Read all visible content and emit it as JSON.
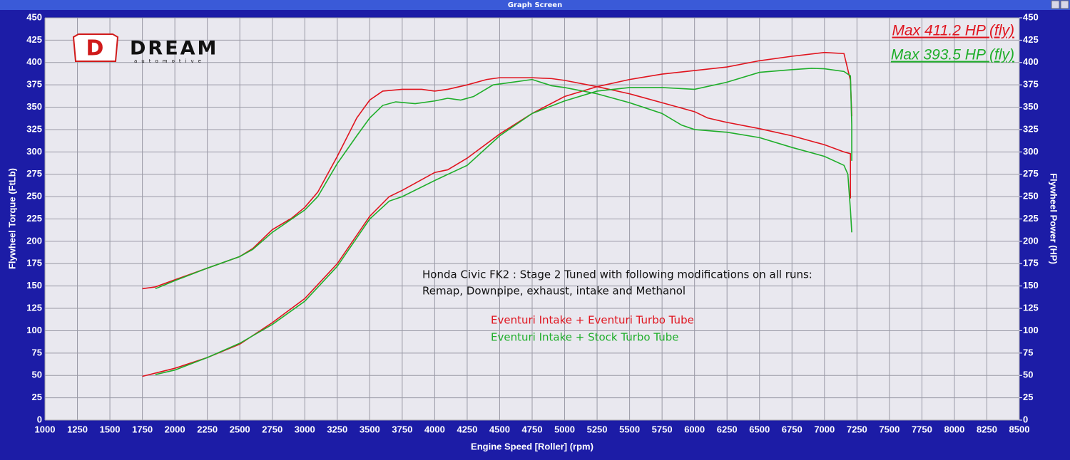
{
  "window_title": "Graph Screen",
  "logo": {
    "name": "DREAM",
    "tagline": "automotive"
  },
  "chart_data": {
    "type": "line",
    "xlabel": "Engine Speed [Roller] (rpm)",
    "ylabel": "Flywheel Torque (FtLb)",
    "y2label": "Flywheel Power (HP)",
    "xlim": [
      1000,
      8500
    ],
    "ylim": [
      0,
      450
    ],
    "y2lim": [
      0,
      450
    ],
    "xticks": [
      1000,
      1250,
      1500,
      1750,
      2000,
      2250,
      2500,
      2750,
      3000,
      3250,
      3500,
      3750,
      4000,
      4250,
      4500,
      4750,
      5000,
      5250,
      5500,
      5750,
      6000,
      6250,
      6500,
      6750,
      7000,
      7250,
      7500,
      7750,
      8000,
      8250,
      8500
    ],
    "yticks": [
      0,
      25,
      50,
      75,
      100,
      125,
      150,
      175,
      200,
      225,
      250,
      275,
      300,
      325,
      350,
      375,
      400,
      425,
      450
    ],
    "y2ticks": [
      0,
      25,
      50,
      75,
      100,
      125,
      150,
      175,
      200,
      225,
      250,
      275,
      300,
      325,
      350,
      375,
      400,
      425,
      450
    ],
    "grid": true,
    "annotation": [
      "Honda Civic FK2 : Stage 2 Tuned with following modifications on all runs:",
      "Remap, Downpipe, exhaust, intake and Methanol"
    ],
    "series": [
      {
        "name": "Eventuri Intake + Eventuri Turbo Tube",
        "color": "#e0141e",
        "max_label": "Max 411.2 HP (fly)",
        "torque": {
          "x": [
            1750,
            1850,
            2000,
            2250,
            2500,
            2600,
            2750,
            2900,
            3000,
            3100,
            3250,
            3400,
            3500,
            3600,
            3750,
            3900,
            4000,
            4100,
            4250,
            4400,
            4500,
            4750,
            4900,
            5000,
            5250,
            5500,
            5750,
            6000,
            6100,
            6250,
            6500,
            6750,
            7000,
            7150,
            7200,
            7200
          ],
          "values": [
            147,
            149,
            157,
            170,
            183,
            192,
            213,
            226,
            238,
            255,
            295,
            338,
            358,
            368,
            370,
            370,
            368,
            370,
            375,
            381,
            383,
            383,
            382,
            380,
            373,
            365,
            355,
            345,
            338,
            333,
            326,
            318,
            308,
            300,
            298,
            248
          ]
        },
        "power": {
          "axis": "y2",
          "x": [
            1750,
            2000,
            2250,
            2500,
            2750,
            3000,
            3250,
            3500,
            3650,
            3750,
            4000,
            4100,
            4250,
            4500,
            4750,
            5000,
            5250,
            5500,
            5750,
            6000,
            6250,
            6500,
            6750,
            7000,
            7150,
            7200,
            7210
          ],
          "values": [
            49,
            58,
            70,
            85,
            109,
            136,
            175,
            228,
            250,
            257,
            277,
            280,
            293,
            320,
            343,
            362,
            373,
            381,
            387,
            391,
            395,
            402,
            407,
            411.2,
            410,
            380,
            340
          ]
        }
      },
      {
        "name": "Eventuri Intake + Stock Turbo Tube",
        "color": "#1fae2a",
        "max_label": "Max 393.5 HP (fly)",
        "torque": {
          "x": [
            1850,
            2000,
            2250,
            2500,
            2600,
            2750,
            3000,
            3100,
            3250,
            3400,
            3500,
            3600,
            3700,
            3850,
            4000,
            4100,
            4200,
            4300,
            4450,
            4600,
            4750,
            4900,
            5000,
            5250,
            5500,
            5750,
            5900,
            6000,
            6250,
            6500,
            6750,
            7000,
            7150,
            7180,
            7200,
            7210
          ],
          "values": [
            147,
            156,
            170,
            183,
            191,
            210,
            235,
            250,
            287,
            318,
            338,
            352,
            356,
            354,
            357,
            360,
            358,
            362,
            375,
            378,
            381,
            374,
            372,
            365,
            355,
            343,
            330,
            325,
            322,
            316,
            305,
            295,
            285,
            275,
            235,
            210
          ]
        },
        "power": {
          "axis": "y2",
          "x": [
            1850,
            2000,
            2250,
            2500,
            2750,
            3000,
            3250,
            3500,
            3650,
            3750,
            4000,
            4250,
            4500,
            4750,
            5000,
            5250,
            5500,
            5750,
            6000,
            6250,
            6500,
            6750,
            6900,
            7000,
            7150,
            7200,
            7210,
            7210
          ],
          "values": [
            51,
            56,
            70,
            86,
            107,
            133,
            172,
            225,
            245,
            250,
            268,
            285,
            318,
            343,
            357,
            368,
            372,
            372,
            370,
            378,
            389,
            392,
            393.5,
            393,
            390,
            385,
            330,
            290
          ]
        }
      }
    ]
  }
}
